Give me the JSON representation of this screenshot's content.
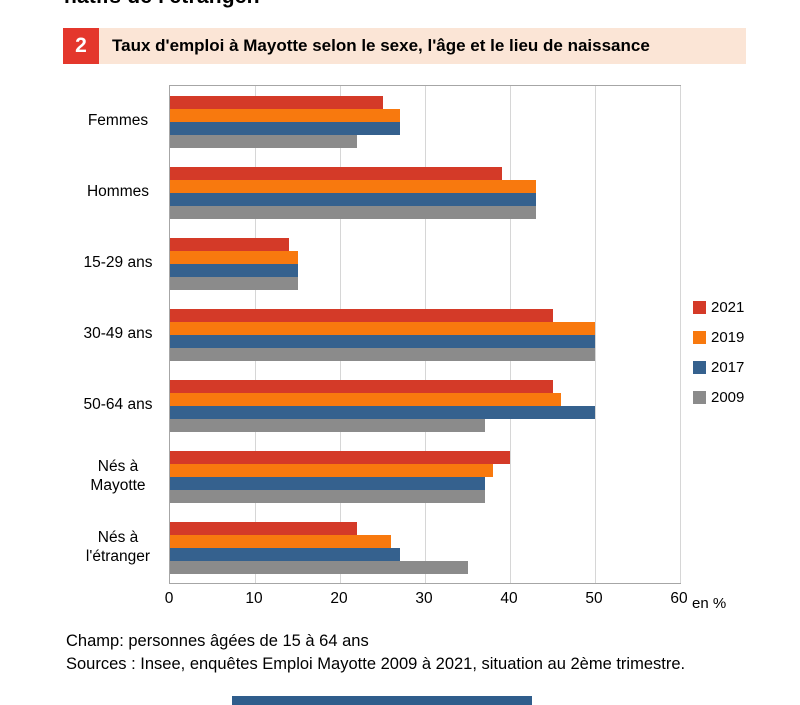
{
  "top_cropped_text": "natifs de l'étranger.",
  "figure": {
    "number": "2",
    "title": "Taux d'emploi  à Mayotte selon le sexe, l'âge et le lieu de naissance"
  },
  "chart_data": {
    "type": "bar",
    "orientation": "horizontal",
    "title": "Taux d'emploi à Mayotte selon le sexe, l'âge et le lieu de naissance",
    "categories": [
      "Femmes",
      "Hommes",
      "15-29 ans",
      "30-49 ans",
      "50-64 ans",
      "Nés à Mayotte",
      "Nés à l'étranger"
    ],
    "series": [
      {
        "name": "2021",
        "color": "#D43A28",
        "values": [
          25,
          39,
          14,
          45,
          45,
          40,
          22
        ]
      },
      {
        "name": "2019",
        "color": "#F8790E",
        "values": [
          27,
          43,
          15,
          50,
          46,
          38,
          26
        ]
      },
      {
        "name": "2017",
        "color": "#35618E",
        "values": [
          27,
          43,
          15,
          50,
          50,
          37,
          27
        ]
      },
      {
        "name": "2009",
        "color": "#8B8B8B",
        "values": [
          22,
          43,
          15,
          50,
          37,
          37,
          35
        ]
      }
    ],
    "xlim": [
      0,
      60
    ],
    "xticks": [
      0,
      10,
      20,
      30,
      40,
      50,
      60
    ],
    "unit_label": "en %",
    "grid": true,
    "legend_position": "right"
  },
  "notes": {
    "champ": "Champ: personnes âgées de 15 à 64 ans",
    "sources": "Sources : Insee, enquêtes Emploi Mayotte 2009 à 2021, situation au 2ème trimestre."
  },
  "colors": {
    "title_bar_bg": "#FBE5D6",
    "badge": "#E4372C",
    "gridline": "#D6D6D6",
    "plot_border": "#A6A6A6",
    "bottom_bar": "#2F5D8C"
  }
}
